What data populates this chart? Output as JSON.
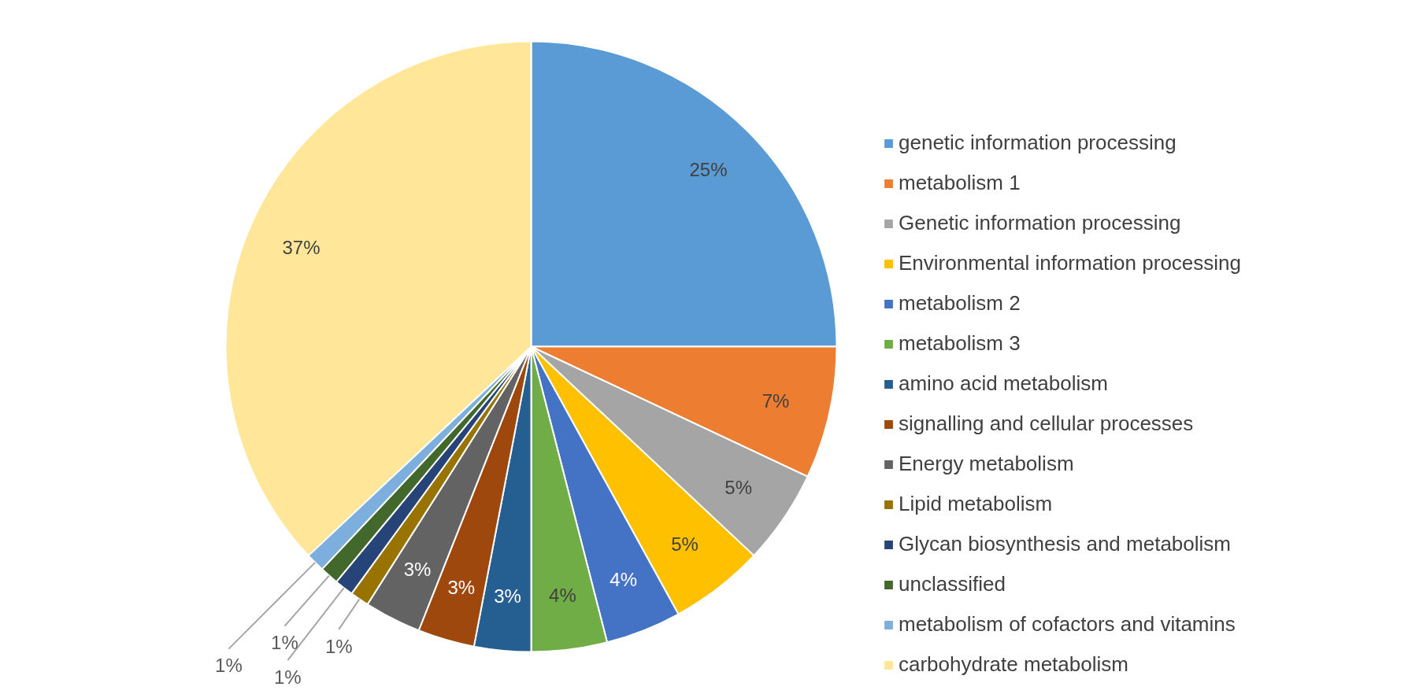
{
  "chart_data": {
    "type": "pie",
    "categories": [
      "genetic information processing",
      "metabolism 1",
      "Genetic information processing",
      "Environmental information processing",
      "metabolism 2",
      "metabolism 3",
      "amino acid metabolism",
      "signalling and cellular processes",
      "Energy metabolism",
      "Lipid metabolism",
      "Glycan biosynthesis and metabolism",
      "unclassified",
      "metabolism of cofactors and vitamins",
      "carbohydrate metabolism"
    ],
    "values": [
      25,
      7,
      5,
      5,
      4,
      4,
      3,
      3,
      3,
      1,
      1,
      1,
      1,
      37
    ],
    "value_labels": [
      "25%",
      "7%",
      "5%",
      "5%",
      "4%",
      "4%",
      "3%",
      "3%",
      "3%",
      "1%",
      "1%",
      "1%",
      "1%",
      "37%"
    ],
    "colors": [
      "#5b9bd5",
      "#ed7d31",
      "#a5a5a5",
      "#ffc000",
      "#4472c4",
      "#70ad47",
      "#255e91",
      "#9e480e",
      "#636363",
      "#997300",
      "#264478",
      "#43682b",
      "#7cafdd",
      "#ffe699"
    ],
    "legend": "right"
  }
}
